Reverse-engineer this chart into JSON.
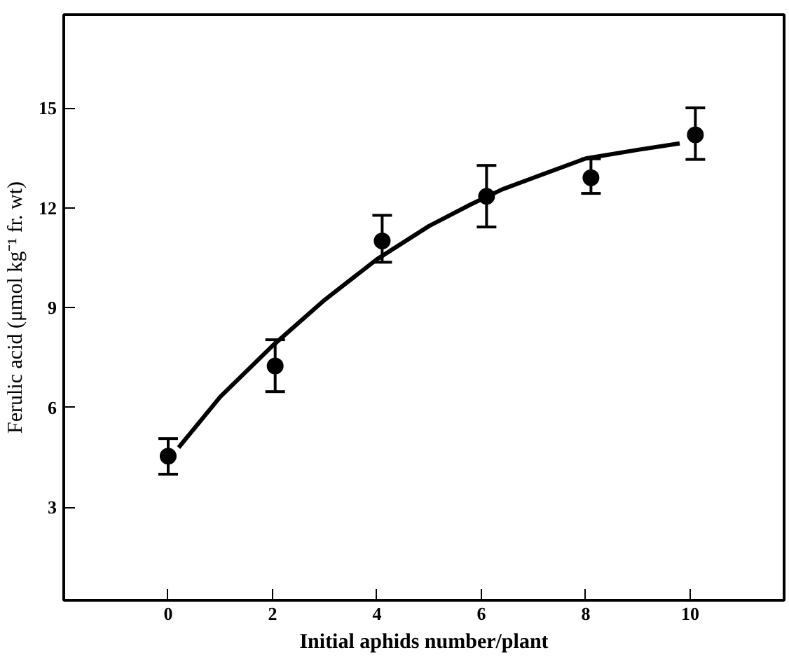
{
  "chart_data": {
    "type": "scatter",
    "xlabel": "Initial aphids number/plant",
    "ylabel": "Ferulic acid (μmol kg⁻¹ fr. wt)",
    "xlim": [
      -2,
      11.8
    ],
    "ylim": [
      0.2,
      17.8
    ],
    "xticks": [
      0,
      2,
      4,
      6,
      8,
      10
    ],
    "yticks": [
      3,
      6,
      9,
      12,
      15
    ],
    "grid": false,
    "marker": "circle",
    "series": [
      {
        "color": "#000000",
        "x": [
          0,
          2.05,
          4.1,
          6.1,
          8.1,
          10.1
        ],
        "values": [
          4.53,
          7.24,
          11.0,
          12.34,
          12.9,
          14.19
        ],
        "errors": [
          [
            3.99,
            5.06
          ],
          [
            6.47,
            8.03
          ],
          [
            10.36,
            11.77
          ],
          [
            11.42,
            13.27
          ],
          [
            12.43,
            13.47
          ],
          [
            13.45,
            15.0
          ]
        ]
      },
      {
        "type": "line",
        "color": "#000000",
        "line_style": "solid",
        "marker": "none",
        "x": [
          0.2,
          1,
          2,
          3,
          4,
          5,
          5.8,
          6.4,
          7,
          8,
          9,
          9.8
        ],
        "values": [
          4.79,
          6.32,
          7.85,
          9.23,
          10.45,
          11.45,
          12.1,
          12.55,
          12.9,
          13.48,
          13.74,
          13.93
        ]
      }
    ]
  }
}
